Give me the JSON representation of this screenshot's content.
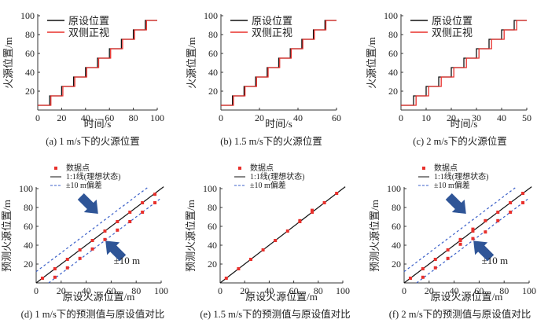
{
  "chart_data": [
    {
      "type": "line",
      "id": "a",
      "caption": "(a) 1 m/s下的火源位置",
      "xlabel": "时间/s",
      "ylabel": "火源位置/m",
      "xlim": [
        0,
        100
      ],
      "ylim": [
        0,
        100
      ],
      "xticks": [
        0,
        20,
        40,
        60,
        80,
        100
      ],
      "yticks": [
        20,
        40,
        60,
        80,
        100
      ],
      "legend": [
        "原设位置",
        "双侧正视"
      ],
      "legend_position": "top-left",
      "series": [
        {
          "name": "原设位置",
          "color": "#111111",
          "step_times": [
            10,
            20,
            30,
            40,
            50,
            60,
            70,
            80,
            90
          ],
          "levels": [
            5,
            15,
            25,
            35,
            45,
            55,
            65,
            75,
            85,
            95
          ],
          "t_start": 0,
          "t_end": 100
        },
        {
          "name": "双侧正视",
          "color": "#e8302c",
          "step_times": [
            11,
            21,
            31,
            41,
            51,
            61,
            71,
            81,
            91
          ],
          "levels": [
            5,
            15,
            25,
            35,
            45,
            55,
            65,
            75,
            85,
            95
          ],
          "t_start": 0,
          "t_end": 100
        }
      ]
    },
    {
      "type": "line",
      "id": "b",
      "caption": "(b) 1.5 m/s下的火源位置",
      "xlabel": "时间/s",
      "ylabel": "火源位置/m",
      "xlim": [
        0,
        60
      ],
      "ylim": [
        0,
        100
      ],
      "xticks": [
        0,
        20,
        40,
        60
      ],
      "yticks": [
        20,
        40,
        60,
        80,
        100
      ],
      "legend": [
        "原设位置",
        "双侧正视"
      ],
      "legend_position": "top-left",
      "series": [
        {
          "name": "原设位置",
          "color": "#111111",
          "step_times": [
            6,
            12,
            18,
            24,
            30,
            36,
            42,
            48,
            54
          ],
          "levels": [
            5,
            15,
            25,
            35,
            45,
            55,
            65,
            75,
            85,
            95
          ],
          "t_start": 0,
          "t_end": 60
        },
        {
          "name": "双侧正视",
          "color": "#e8302c",
          "step_times": [
            6.5,
            12.5,
            18.5,
            24.5,
            30.5,
            36.5,
            42.5,
            48.5,
            54.5
          ],
          "levels": [
            5,
            15,
            25,
            35,
            45,
            55,
            65,
            75,
            85,
            95
          ],
          "t_start": 0,
          "t_end": 60
        }
      ]
    },
    {
      "type": "line",
      "id": "c",
      "caption": "(c) 2 m/s下的火源位置",
      "xlabel": "时间/s",
      "ylabel": "火源位置/m",
      "xlim": [
        0,
        50
      ],
      "ylim": [
        0,
        100
      ],
      "xticks": [
        0,
        10,
        20,
        30,
        40,
        50
      ],
      "yticks": [
        20,
        40,
        60,
        80,
        100
      ],
      "legend": [
        "原设位置",
        "双侧正视"
      ],
      "legend_position": "top-left",
      "series": [
        {
          "name": "原设位置",
          "color": "#111111",
          "step_times": [
            5,
            10,
            15,
            20,
            25,
            30,
            35,
            40,
            45
          ],
          "levels": [
            5,
            15,
            25,
            35,
            45,
            55,
            65,
            75,
            85,
            95
          ],
          "t_start": 0,
          "t_end": 50
        },
        {
          "name": "双侧正视",
          "color": "#e8302c",
          "step_times": [
            6,
            11,
            16,
            21,
            26,
            31,
            36,
            41,
            46
          ],
          "levels": [
            5,
            15,
            25,
            35,
            45,
            55,
            65,
            75,
            85,
            95
          ],
          "t_start": 0,
          "t_end": 50
        }
      ]
    },
    {
      "type": "scatter",
      "id": "d",
      "caption": "(d) 1 m/s下的预测值与原设值对比",
      "xlabel": "原设火源位置/m",
      "ylabel": "预测火源位置/m",
      "xlim": [
        0,
        100
      ],
      "ylim": [
        0,
        100
      ],
      "xticks": [
        0,
        20,
        40,
        60,
        80,
        100
      ],
      "yticks": [
        20,
        40,
        60,
        80,
        100
      ],
      "legend": [
        "数据点",
        "1:1线(理想状态)",
        "±10 m偏差"
      ],
      "legend_position": "top-left",
      "annotation": "±10 m",
      "show_bands": true,
      "points": [
        [
          5,
          5
        ],
        [
          15,
          15
        ],
        [
          15,
          6
        ],
        [
          25,
          25
        ],
        [
          25,
          16
        ],
        [
          35,
          35
        ],
        [
          35,
          26
        ],
        [
          45,
          45
        ],
        [
          45,
          36
        ],
        [
          55,
          55
        ],
        [
          55,
          46
        ],
        [
          65,
          65
        ],
        [
          65,
          56
        ],
        [
          75,
          75
        ],
        [
          75,
          65
        ],
        [
          85,
          85
        ],
        [
          85,
          75
        ],
        [
          95,
          94
        ],
        [
          95,
          85
        ]
      ]
    },
    {
      "type": "scatter",
      "id": "e",
      "caption": "(e) 1.5 m/s下的预测值与原设值对比",
      "xlabel": "原设火源位置/m",
      "ylabel": "预测火源位置/m",
      "xlim": [
        0,
        100
      ],
      "ylim": [
        0,
        100
      ],
      "xticks": [
        0,
        20,
        40,
        60,
        80,
        100
      ],
      "yticks": [
        20,
        40,
        60,
        80,
        100
      ],
      "legend": [
        "数据点",
        "1:1线(理想状态)",
        "±10 m偏差"
      ],
      "legend_position": "top-left",
      "show_bands": false,
      "points": [
        [
          5,
          5
        ],
        [
          15,
          15
        ],
        [
          25,
          25
        ],
        [
          35,
          35
        ],
        [
          45,
          45
        ],
        [
          55,
          55
        ],
        [
          65,
          65
        ],
        [
          65,
          66
        ],
        [
          75,
          75
        ],
        [
          75,
          77
        ],
        [
          85,
          85
        ],
        [
          95,
          95
        ]
      ]
    },
    {
      "type": "scatter",
      "id": "f",
      "caption": "(f) 2 m/s下的预测值与原设值对比",
      "xlabel": "原设火源位置/m",
      "ylabel": "预测火源位置/m",
      "xlim": [
        0,
        100
      ],
      "ylim": [
        0,
        100
      ],
      "xticks": [
        0,
        20,
        40,
        60,
        80,
        100
      ],
      "yticks": [
        20,
        40,
        60,
        80,
        100
      ],
      "legend": [
        "数据点",
        "1:1线(理想状态)",
        "±10 m偏差"
      ],
      "legend_position": "top-left",
      "annotation": "±10 m",
      "show_bands": true,
      "points": [
        [
          5,
          5
        ],
        [
          15,
          15
        ],
        [
          15,
          6
        ],
        [
          25,
          25
        ],
        [
          25,
          16
        ],
        [
          35,
          35
        ],
        [
          35,
          26
        ],
        [
          45,
          45
        ],
        [
          45,
          46
        ],
        [
          45,
          41
        ],
        [
          55,
          57
        ],
        [
          55,
          55
        ],
        [
          55,
          47
        ],
        [
          65,
          66
        ],
        [
          65,
          54
        ],
        [
          75,
          75
        ],
        [
          75,
          66
        ],
        [
          85,
          85
        ],
        [
          85,
          75
        ],
        [
          95,
          95
        ],
        [
          95,
          85
        ]
      ]
    }
  ],
  "colors": {
    "black": "#111111",
    "red": "#e8302c",
    "blue_dash": "#3a5fc8",
    "arrow": "#2f5597"
  }
}
